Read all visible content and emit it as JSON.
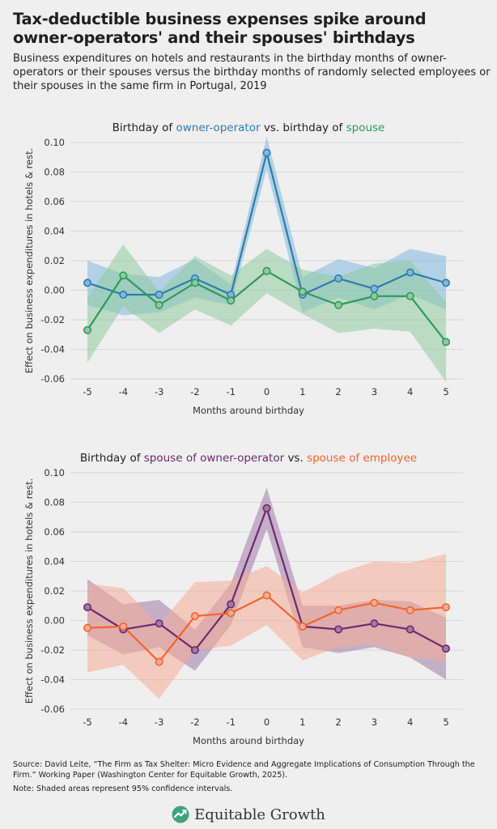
{
  "header": {
    "title": "Tax-deductible business expenses spike around owner-operators' and their spouses' birthdays",
    "subtitle": "Business expenditures on hotels and restaurants in the birthday months of owner-operators or their spouses versus the birthday months of randomly selected employees or their spouses in the same firm in Portugal, 2019"
  },
  "colors": {
    "blue": "#2f7bb0",
    "green": "#2e9a5d",
    "purple": "#6b2a6e",
    "orange": "#f4642a",
    "blue_band": "#7fb8dc",
    "green_band": "#8fcb9f",
    "purple_band": "#a07aa8",
    "orange_band": "#f5ab95"
  },
  "chart_data": [
    {
      "type": "line",
      "title_parts": [
        "Birthday of ",
        "owner-operator",
        " vs. birthday of ",
        "spouse"
      ],
      "xlabel": "Months around birthday",
      "ylabel": "Effect on business expenditures in hotels & rest.",
      "x": [
        -5,
        -4,
        -3,
        -2,
        -1,
        0,
        1,
        2,
        3,
        4,
        5
      ],
      "x_tick_labels": [
        "-5",
        "-4",
        "-3",
        "-2",
        "-1",
        "0",
        "1",
        "2",
        "3",
        "4",
        "5"
      ],
      "ylim": [
        -0.06,
        0.1
      ],
      "y_ticks": [
        0.1,
        0.08,
        0.06,
        0.04,
        0.02,
        0.0,
        -0.02,
        -0.04,
        -0.06
      ],
      "y_tick_labels": [
        "0.10",
        "0.08",
        "0.06",
        "0.04",
        "0.02",
        "0.00",
        "-0.02",
        "-0.04",
        "-0.06"
      ],
      "series": [
        {
          "name": "owner-operator",
          "color_key": "blue",
          "values": [
            0.005,
            -0.003,
            -0.003,
            0.008,
            -0.003,
            0.093,
            -0.003,
            0.008,
            0.001,
            0.012,
            0.005
          ],
          "lower": [
            -0.01,
            -0.017,
            -0.015,
            -0.005,
            -0.01,
            0.082,
            -0.015,
            -0.005,
            -0.013,
            -0.003,
            -0.013
          ],
          "upper": [
            0.02,
            0.011,
            0.009,
            0.021,
            0.004,
            0.104,
            0.009,
            0.021,
            0.015,
            0.028,
            0.023
          ]
        },
        {
          "name": "spouse",
          "color_key": "green",
          "values": [
            -0.027,
            0.01,
            -0.01,
            0.005,
            -0.007,
            0.013,
            -0.001,
            -0.01,
            -0.004,
            -0.004,
            -0.035
          ],
          "lower": [
            -0.049,
            -0.011,
            -0.029,
            -0.013,
            -0.024,
            -0.002,
            -0.016,
            -0.029,
            -0.026,
            -0.028,
            -0.062
          ],
          "upper": [
            -0.005,
            0.031,
            -0.001,
            0.023,
            0.01,
            0.028,
            0.014,
            0.009,
            0.018,
            0.02,
            -0.008
          ]
        }
      ]
    },
    {
      "type": "line",
      "title_parts": [
        "Birthday of ",
        "spouse of owner-operator",
        " vs. ",
        "spouse of employee"
      ],
      "xlabel": "Months around birthday",
      "ylabel": "Effect on business expenditures in hotels & rest.",
      "x": [
        -5,
        -4,
        -3,
        -2,
        -1,
        0,
        1,
        2,
        3,
        4,
        5
      ],
      "x_tick_labels": [
        "-5",
        "-4",
        "-3",
        "-2",
        "-1",
        "0",
        "1",
        "2",
        "3",
        "4",
        "5"
      ],
      "ylim": [
        -0.06,
        0.1
      ],
      "y_ticks": [
        0.1,
        0.08,
        0.06,
        0.04,
        0.02,
        0.0,
        -0.02,
        -0.04,
        -0.06
      ],
      "y_tick_labels": [
        "0.10",
        "0.08",
        "0.06",
        "0.04",
        "0.02",
        "0.00",
        "-0.02",
        "-0.04",
        "-0.06"
      ],
      "series": [
        {
          "name": "spouse of owner-operator",
          "color_key": "purple",
          "values": [
            0.009,
            -0.006,
            -0.002,
            -0.02,
            0.011,
            0.076,
            -0.004,
            -0.006,
            -0.002,
            -0.006,
            -0.019
          ],
          "lower": [
            -0.01,
            -0.023,
            -0.018,
            -0.034,
            -0.003,
            0.062,
            -0.018,
            -0.022,
            -0.018,
            -0.025,
            -0.04
          ],
          "upper": [
            0.028,
            0.011,
            0.014,
            -0.006,
            0.025,
            0.09,
            0.01,
            0.01,
            0.014,
            0.013,
            0.002
          ]
        },
        {
          "name": "spouse of employee",
          "color_key": "orange",
          "values": [
            -0.005,
            -0.004,
            -0.028,
            0.003,
            0.005,
            0.017,
            -0.004,
            0.007,
            0.012,
            0.007,
            0.009
          ],
          "lower": [
            -0.035,
            -0.03,
            -0.053,
            -0.02,
            -0.017,
            -0.003,
            -0.027,
            -0.018,
            -0.016,
            -0.025,
            -0.027
          ],
          "upper": [
            0.025,
            0.022,
            -0.003,
            0.026,
            0.027,
            0.037,
            0.019,
            0.032,
            0.04,
            0.039,
            0.045
          ]
        }
      ]
    }
  ],
  "footer": {
    "source": "Source: David Leite, “The Firm as Tax Shelter: Micro Evidence and Aggregate Implications of Consumption Through the Firm.” Working Paper (Washington Center for Equitable Growth, 2025).",
    "note": "Note: Shaded areas represent 95% confidence intervals.",
    "brand": "Equitable Growth"
  }
}
